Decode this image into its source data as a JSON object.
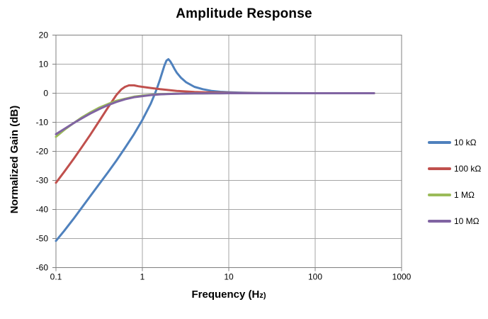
{
  "title": "Amplitude Response",
  "axes": {
    "y_label": "Normalized Gain (dB)",
    "x_label_main": "Frequency (H",
    "x_label_small": "z)"
  },
  "colors": {
    "background": "#FFFFFF",
    "grid": "#A6A6A6",
    "axis": "#808080",
    "text": "#000000"
  },
  "chart_data": {
    "type": "line",
    "title": "Amplitude Response",
    "xlabel": "Frequency (Hz)",
    "ylabel": "Normalized Gain (dB)",
    "x_scale": "log",
    "xlim": [
      0.1,
      1000
    ],
    "ylim": [
      -60,
      20
    ],
    "x_ticks": [
      0.1,
      1,
      10,
      100,
      1000
    ],
    "y_ticks": [
      20,
      10,
      0,
      -10,
      -20,
      -30,
      -40,
      -50,
      -60
    ],
    "grid": true,
    "legend_position": "right",
    "line_width": 3,
    "series": [
      {
        "name": "10 kΩ",
        "color": "#4F81BD",
        "peak": {
          "freq_hz": 2.0,
          "gain_db": 11.7
        },
        "points": [
          [
            0.1,
            -50.8
          ],
          [
            0.125,
            -47.3
          ],
          [
            0.16,
            -43.2
          ],
          [
            0.2,
            -39.3
          ],
          [
            0.25,
            -35.4
          ],
          [
            0.32,
            -31.1
          ],
          [
            0.4,
            -27.2
          ],
          [
            0.5,
            -23.2
          ],
          [
            0.63,
            -18.8
          ],
          [
            0.8,
            -14.1
          ],
          [
            1.0,
            -9.2
          ],
          [
            1.25,
            -3.6
          ],
          [
            1.4,
            -0.1
          ],
          [
            1.5,
            2.3
          ],
          [
            1.6,
            4.7
          ],
          [
            1.7,
            7.2
          ],
          [
            1.8,
            9.5
          ],
          [
            1.9,
            11.2
          ],
          [
            2.0,
            11.7
          ],
          [
            2.1,
            11.0
          ],
          [
            2.2,
            10.0
          ],
          [
            2.35,
            8.4
          ],
          [
            2.5,
            7.1
          ],
          [
            2.8,
            5.3
          ],
          [
            3.2,
            3.8
          ],
          [
            4,
            2.2
          ],
          [
            5,
            1.4
          ],
          [
            6.3,
            0.8
          ],
          [
            8,
            0.5
          ],
          [
            10,
            0.35
          ],
          [
            13,
            0.22
          ],
          [
            16,
            0.15
          ],
          [
            20,
            0.1
          ],
          [
            25,
            0.06
          ],
          [
            32,
            0.04
          ],
          [
            50,
            0.02
          ],
          [
            100,
            0.01
          ],
          [
            200,
            0
          ],
          [
            480,
            0
          ]
        ]
      },
      {
        "name": "100 kΩ",
        "color": "#C0504D",
        "peak": {
          "freq_hz": 0.7,
          "gain_db": 2.7
        },
        "points": [
          [
            0.1,
            -30.8
          ],
          [
            0.125,
            -27.0
          ],
          [
            0.16,
            -22.6
          ],
          [
            0.2,
            -18.5
          ],
          [
            0.25,
            -14.3
          ],
          [
            0.32,
            -9.4
          ],
          [
            0.4,
            -4.9
          ],
          [
            0.5,
            -0.6
          ],
          [
            0.57,
            1.3
          ],
          [
            0.63,
            2.2
          ],
          [
            0.7,
            2.7
          ],
          [
            0.8,
            2.7
          ],
          [
            0.9,
            2.4
          ],
          [
            1.0,
            2.2
          ],
          [
            1.25,
            1.8
          ],
          [
            1.6,
            1.4
          ],
          [
            2.0,
            1.1
          ],
          [
            2.5,
            0.8
          ],
          [
            3.2,
            0.6
          ],
          [
            4,
            0.45
          ],
          [
            5,
            0.33
          ],
          [
            6.3,
            0.24
          ],
          [
            8,
            0.17
          ],
          [
            10,
            0.12
          ],
          [
            13,
            0.08
          ],
          [
            16,
            0.05
          ],
          [
            20,
            0.03
          ],
          [
            32,
            0.01
          ],
          [
            50,
            0
          ],
          [
            100,
            0
          ],
          [
            200,
            0
          ],
          [
            480,
            0
          ]
        ]
      },
      {
        "name": "1 MΩ",
        "color": "#9BBB59",
        "peak": null,
        "points": [
          [
            0.1,
            -15.0
          ],
          [
            0.125,
            -12.6
          ],
          [
            0.16,
            -10.3
          ],
          [
            0.2,
            -8.3
          ],
          [
            0.25,
            -6.6
          ],
          [
            0.32,
            -4.9
          ],
          [
            0.4,
            -3.7
          ],
          [
            0.5,
            -2.6
          ],
          [
            0.63,
            -1.9
          ],
          [
            0.8,
            -1.2
          ],
          [
            1.0,
            -0.8
          ],
          [
            1.25,
            -0.55
          ],
          [
            1.6,
            -0.34
          ],
          [
            2.0,
            -0.22
          ],
          [
            2.5,
            -0.14
          ],
          [
            3.2,
            -0.09
          ],
          [
            4,
            -0.06
          ],
          [
            5,
            -0.04
          ],
          [
            6.3,
            -0.02
          ],
          [
            8,
            -0.02
          ],
          [
            10,
            -0.01
          ],
          [
            16,
            -0.01
          ],
          [
            32,
            0
          ],
          [
            100,
            0
          ],
          [
            200,
            0
          ],
          [
            480,
            0
          ]
        ]
      },
      {
        "name": "10 MΩ",
        "color": "#8064A2",
        "peak": null,
        "points": [
          [
            0.1,
            -14.1
          ],
          [
            0.125,
            -12.3
          ],
          [
            0.16,
            -10.3
          ],
          [
            0.2,
            -8.6
          ],
          [
            0.25,
            -7.0
          ],
          [
            0.32,
            -5.4
          ],
          [
            0.4,
            -4.1
          ],
          [
            0.5,
            -3.0
          ],
          [
            0.63,
            -2.1
          ],
          [
            0.8,
            -1.4
          ],
          [
            1.0,
            -1.0
          ],
          [
            1.25,
            -0.64
          ],
          [
            1.6,
            -0.4
          ],
          [
            2.0,
            -0.26
          ],
          [
            2.5,
            -0.17
          ],
          [
            3.2,
            -0.11
          ],
          [
            4,
            -0.07
          ],
          [
            5,
            -0.05
          ],
          [
            6.3,
            -0.03
          ],
          [
            8,
            -0.02
          ],
          [
            10,
            -0.01
          ],
          [
            16,
            -0.01
          ],
          [
            32,
            0
          ],
          [
            100,
            0
          ],
          [
            200,
            0
          ],
          [
            480,
            0
          ]
        ]
      }
    ]
  }
}
